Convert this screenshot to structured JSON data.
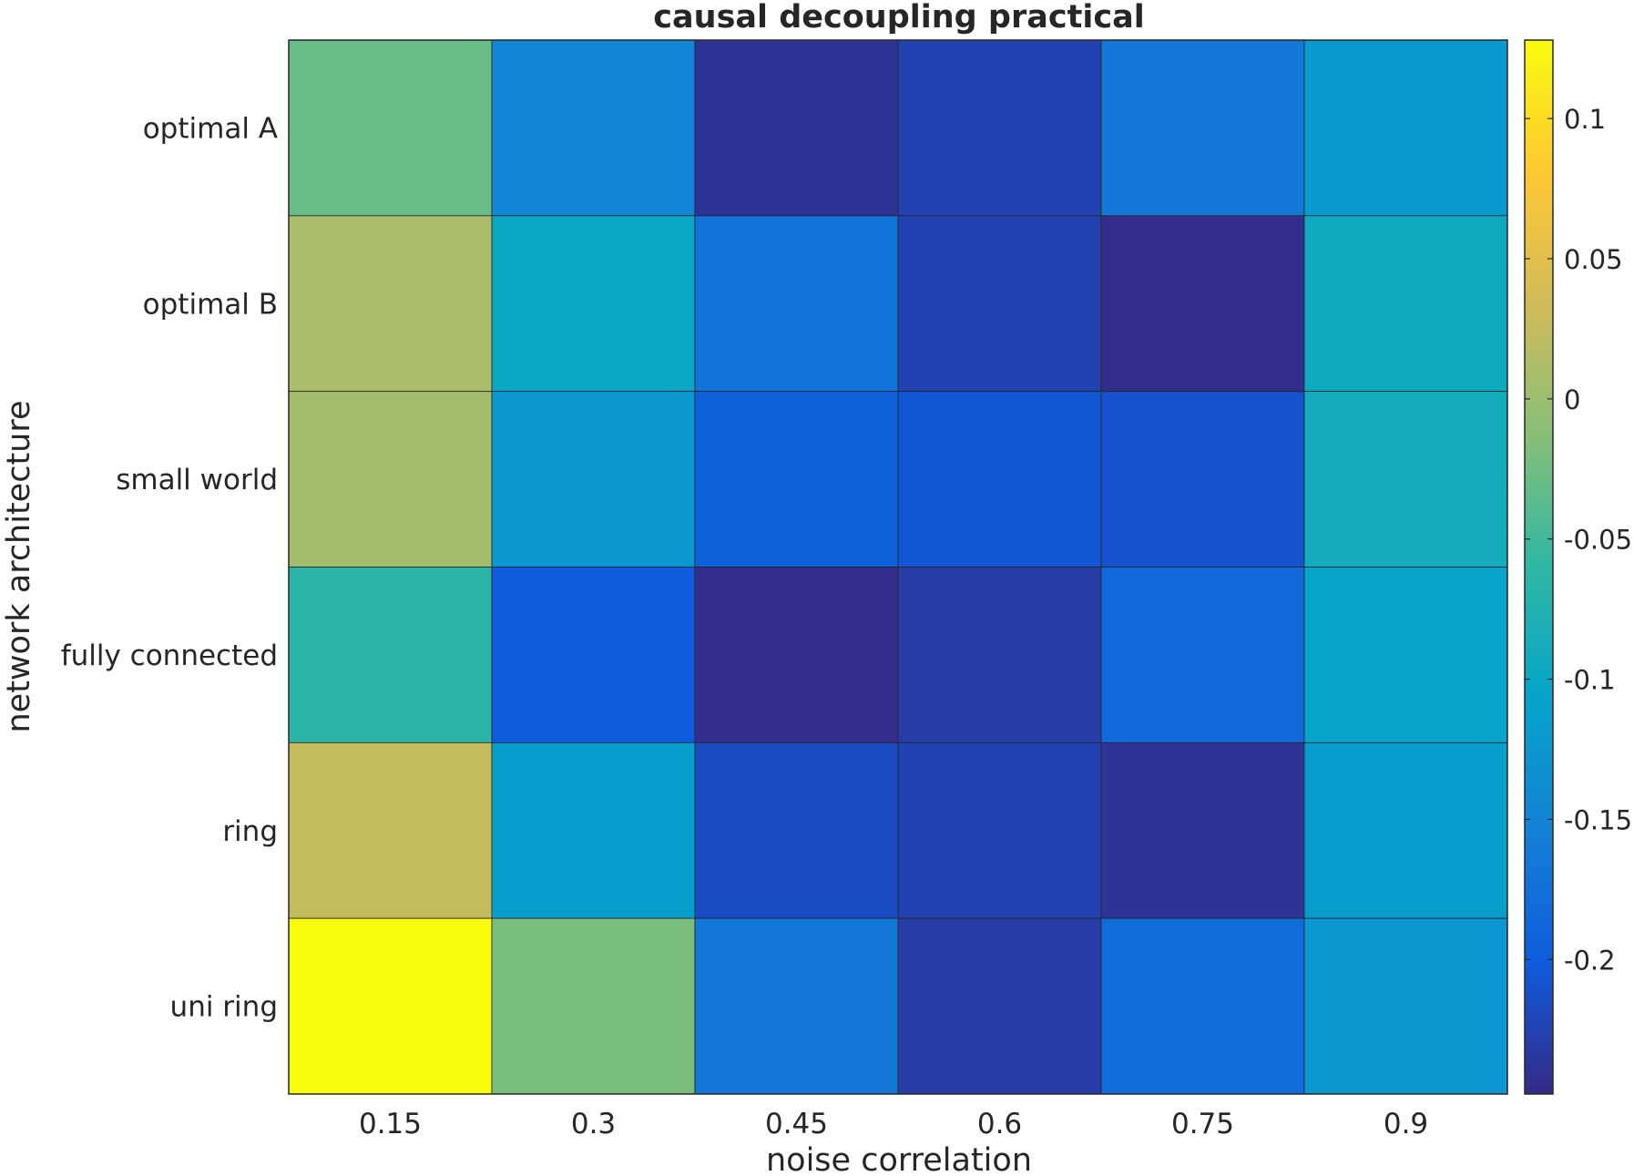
{
  "chart_data": {
    "type": "heatmap",
    "title": "causal decoupling practical",
    "xlabel": "noise correlation",
    "ylabel": "network architecture",
    "x_categories": [
      "0.15",
      "0.3",
      "0.45",
      "0.6",
      "0.75",
      "0.9"
    ],
    "y_categories": [
      "optimal A",
      "optimal B",
      "small world",
      "fully connected",
      "ring",
      "uni ring"
    ],
    "values": [
      [
        -0.03,
        -0.148,
        -0.24,
        -0.225,
        -0.165,
        -0.12
      ],
      [
        0.01,
        -0.1,
        -0.17,
        -0.225,
        -0.245,
        -0.095
      ],
      [
        0.005,
        -0.125,
        -0.195,
        -0.205,
        -0.21,
        -0.09
      ],
      [
        -0.065,
        -0.2,
        -0.245,
        -0.23,
        -0.185,
        -0.105
      ],
      [
        0.025,
        -0.115,
        -0.215,
        -0.225,
        -0.24,
        -0.115
      ],
      [
        0.128,
        -0.02,
        -0.165,
        -0.23,
        -0.18,
        -0.125
      ]
    ],
    "clim": [
      -0.248,
      0.128
    ],
    "colorbar": {
      "ticks": [
        0.1,
        0.05,
        0,
        -0.05,
        -0.1,
        -0.15,
        -0.2
      ],
      "tick_labels": [
        "0.1",
        "0.05",
        "0",
        "-0.05",
        "-0.1",
        "-0.15",
        "-0.2"
      ]
    },
    "colormap": "parula",
    "grid": false
  }
}
